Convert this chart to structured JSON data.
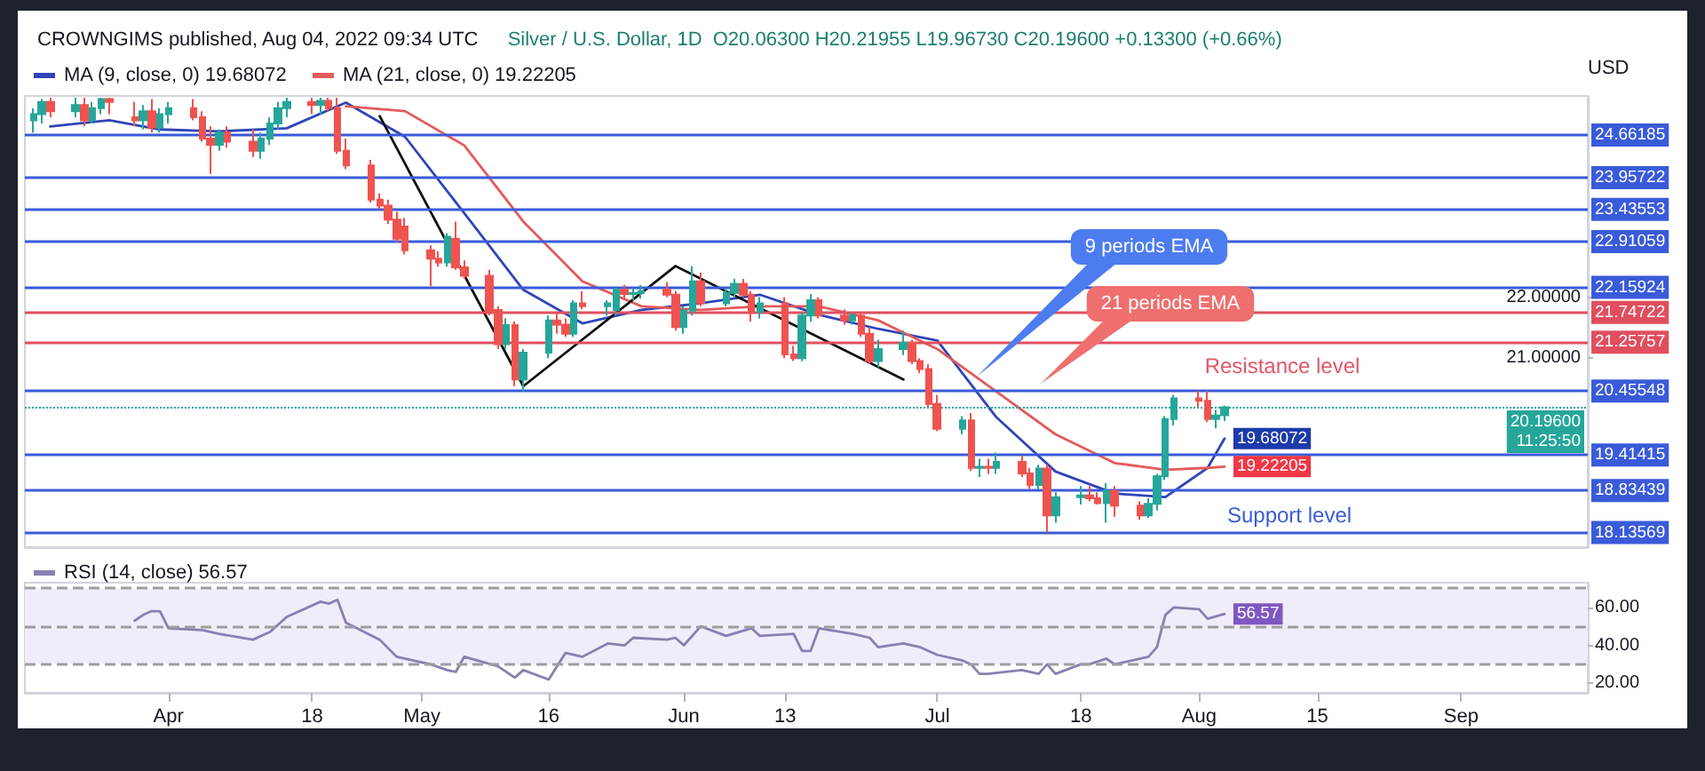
{
  "chart_data": [
    {
      "type": "candlestick",
      "title": "CROWNGIMS published, Aug 04, 2022 09:34 UTC",
      "subtitle": "Silver / U.S. Dollar, 1D  O20.06300 H20.21955 L19.96730 C20.19600 +0.13300 (+0.66%)",
      "ylabel": "USD",
      "x": [
        "2022-03-16",
        "2022-03-17",
        "2022-03-18",
        "2022-03-21",
        "2022-03-22",
        "2022-03-23",
        "2022-03-24",
        "2022-03-25",
        "2022-03-28",
        "2022-03-29",
        "2022-03-30",
        "2022-03-31",
        "2022-04-01",
        "2022-04-04",
        "2022-04-05",
        "2022-04-06",
        "2022-04-07",
        "2022-04-08",
        "2022-04-11",
        "2022-04-12",
        "2022-04-13",
        "2022-04-14",
        "2022-04-15",
        "2022-04-18",
        "2022-04-19",
        "2022-04-20",
        "2022-04-21",
        "2022-04-22",
        "2022-04-25",
        "2022-04-26",
        "2022-04-27",
        "2022-04-28",
        "2022-04-29",
        "2022-05-02",
        "2022-05-03",
        "2022-05-04",
        "2022-05-05",
        "2022-05-06",
        "2022-05-09",
        "2022-05-10",
        "2022-05-11",
        "2022-05-12",
        "2022-05-13",
        "2022-05-16",
        "2022-05-17",
        "2022-05-18",
        "2022-05-19",
        "2022-05-20",
        "2022-05-23",
        "2022-05-24",
        "2022-05-25",
        "2022-05-26",
        "2022-05-27",
        "2022-05-30",
        "2022-05-31",
        "2022-06-01",
        "2022-06-02",
        "2022-06-03",
        "2022-06-06",
        "2022-06-07",
        "2022-06-08",
        "2022-06-09",
        "2022-06-10",
        "2022-06-13",
        "2022-06-14",
        "2022-06-15",
        "2022-06-16",
        "2022-06-17",
        "2022-06-20",
        "2022-06-21",
        "2022-06-22",
        "2022-06-23",
        "2022-06-24",
        "2022-06-27",
        "2022-06-28",
        "2022-06-29",
        "2022-06-30",
        "2022-07-01",
        "2022-07-04",
        "2022-07-05",
        "2022-07-06",
        "2022-07-07",
        "2022-07-08",
        "2022-07-11",
        "2022-07-12",
        "2022-07-13",
        "2022-07-14",
        "2022-07-15",
        "2022-07-18",
        "2022-07-19",
        "2022-07-20",
        "2022-07-21",
        "2022-07-22",
        "2022-07-25",
        "2022-07-26",
        "2022-07-27",
        "2022-07-28",
        "2022-07-29",
        "2022-08-01",
        "2022-08-02",
        "2022-08-03",
        "2022-08-04"
      ],
      "ohlc": [
        [
          24.9,
          25.1,
          24.7,
          25.0
        ],
        [
          25.0,
          25.25,
          24.85,
          25.2
        ],
        [
          25.2,
          25.27,
          24.95,
          25.05
        ],
        [
          25.05,
          25.27,
          24.95,
          25.15
        ],
        [
          25.15,
          25.27,
          24.8,
          24.9
        ],
        [
          24.9,
          25.2,
          24.85,
          25.1
        ],
        [
          25.1,
          25.27,
          25.0,
          25.25
        ],
        [
          25.25,
          25.27,
          25.0,
          25.2
        ],
        [
          24.95,
          25.2,
          24.8,
          24.9
        ],
        [
          24.9,
          25.15,
          24.75,
          25.05
        ],
        [
          25.05,
          25.25,
          24.7,
          24.78
        ],
        [
          24.78,
          25.1,
          24.7,
          25.0
        ],
        [
          25.0,
          25.2,
          24.85,
          25.1
        ],
        [
          25.1,
          25.25,
          24.9,
          24.95
        ],
        [
          24.95,
          25.05,
          24.55,
          24.6
        ],
        [
          24.6,
          24.8,
          24.02,
          24.5
        ],
        [
          24.5,
          24.75,
          24.4,
          24.7
        ],
        [
          24.7,
          24.8,
          24.45,
          24.55
        ],
        [
          24.55,
          24.75,
          24.3,
          24.4
        ],
        [
          24.4,
          24.7,
          24.27,
          24.6
        ],
        [
          24.6,
          24.95,
          24.5,
          24.85
        ],
        [
          24.85,
          25.2,
          24.75,
          25.1
        ],
        [
          25.1,
          25.27,
          24.95,
          25.2
        ],
        [
          25.2,
          25.27,
          25.0,
          25.15
        ],
        [
          25.15,
          25.27,
          25.0,
          25.22
        ],
        [
          25.22,
          25.27,
          25.05,
          25.1
        ],
        [
          25.1,
          25.27,
          24.35,
          24.4
        ],
        [
          24.4,
          24.6,
          24.1,
          24.16
        ],
        [
          24.16,
          24.25,
          23.55,
          23.6
        ],
        [
          23.6,
          23.7,
          23.45,
          23.5
        ],
        [
          23.5,
          23.6,
          23.2,
          23.27
        ],
        [
          23.27,
          23.4,
          22.9,
          22.96
        ],
        [
          23.16,
          23.3,
          22.7,
          22.77
        ],
        [
          22.77,
          22.85,
          22.18,
          22.63
        ],
        [
          22.63,
          22.75,
          22.5,
          22.57
        ],
        [
          22.57,
          23.05,
          22.5,
          22.99
        ],
        [
          22.96,
          23.24,
          22.45,
          22.49
        ],
        [
          22.49,
          22.6,
          22.3,
          22.35
        ],
        [
          22.35,
          22.45,
          21.7,
          21.76
        ],
        [
          21.79,
          21.85,
          21.15,
          21.23
        ],
        [
          21.23,
          21.65,
          21.15,
          21.54
        ],
        [
          21.54,
          21.6,
          20.54,
          20.65
        ],
        [
          20.65,
          21.15,
          20.45,
          21.09
        ],
        [
          21.09,
          21.7,
          21.0,
          21.62
        ],
        [
          21.62,
          21.75,
          21.4,
          21.55
        ],
        [
          21.55,
          21.65,
          21.35,
          21.4
        ],
        [
          21.4,
          21.95,
          21.35,
          21.9
        ],
        [
          21.9,
          22.1,
          21.8,
          21.85
        ],
        [
          21.85,
          21.95,
          21.7,
          21.9
        ],
        [
          21.79,
          22.15,
          21.7,
          22.12
        ],
        [
          22.12,
          22.2,
          21.95,
          22.05
        ],
        [
          22.05,
          22.15,
          21.95,
          22.07
        ],
        [
          22.07,
          22.2,
          21.98,
          22.1
        ],
        [
          22.12,
          22.25,
          22.0,
          22.04
        ],
        [
          22.04,
          22.1,
          21.45,
          21.51
        ],
        [
          21.51,
          21.85,
          21.4,
          21.78
        ],
        [
          21.78,
          22.51,
          21.7,
          22.26
        ],
        [
          22.26,
          22.4,
          21.85,
          21.9
        ],
        [
          21.9,
          22.15,
          21.85,
          22.07
        ],
        [
          22.07,
          22.3,
          22.0,
          22.22
        ],
        [
          22.22,
          22.3,
          22.0,
          22.04
        ],
        [
          22.04,
          22.1,
          21.6,
          21.76
        ],
        [
          21.76,
          22.0,
          21.65,
          21.9
        ],
        [
          21.9,
          22.0,
          21.0,
          21.06
        ],
        [
          21.06,
          21.2,
          20.95,
          21.0
        ],
        [
          21.0,
          21.75,
          20.95,
          21.7
        ],
        [
          21.7,
          22.05,
          21.6,
          21.95
        ],
        [
          21.95,
          22.0,
          21.65,
          21.7
        ],
        [
          21.7,
          21.8,
          21.55,
          21.62
        ],
        [
          21.62,
          21.75,
          21.55,
          21.7
        ],
        [
          21.7,
          21.75,
          21.35,
          21.4
        ],
        [
          21.4,
          21.5,
          20.9,
          20.95
        ],
        [
          20.95,
          21.3,
          20.85,
          21.15
        ],
        [
          21.15,
          21.45,
          21.05,
          21.25
        ],
        [
          21.25,
          21.3,
          20.9,
          20.95
        ],
        [
          20.95,
          21.0,
          20.75,
          20.82
        ],
        [
          20.82,
          20.9,
          20.2,
          20.25
        ],
        [
          20.25,
          20.4,
          19.8,
          19.84
        ],
        [
          19.84,
          20.05,
          19.75,
          19.98
        ],
        [
          19.98,
          20.1,
          19.15,
          19.2
        ],
        [
          19.2,
          19.35,
          19.05,
          19.22
        ],
        [
          19.22,
          19.35,
          19.1,
          19.2
        ],
        [
          19.2,
          19.45,
          19.1,
          19.3
        ],
        [
          19.3,
          19.4,
          19.05,
          19.11
        ],
        [
          19.11,
          19.2,
          18.85,
          18.92
        ],
        [
          18.92,
          19.25,
          18.85,
          19.19
        ],
        [
          19.19,
          19.25,
          18.14,
          18.42
        ],
        [
          18.42,
          18.8,
          18.3,
          18.72
        ],
        [
          18.72,
          18.9,
          18.6,
          18.75
        ],
        [
          18.75,
          18.9,
          18.65,
          18.7
        ],
        [
          18.7,
          18.8,
          18.6,
          18.62
        ],
        [
          18.62,
          18.95,
          18.3,
          18.82
        ],
        [
          18.82,
          18.9,
          18.4,
          18.58
        ],
        [
          18.58,
          18.65,
          18.35,
          18.42
        ],
        [
          18.42,
          18.7,
          18.38,
          18.61
        ],
        [
          18.61,
          19.1,
          18.5,
          19.06
        ],
        [
          19.06,
          20.05,
          19.0,
          20.0
        ],
        [
          20.0,
          20.4,
          19.9,
          20.34
        ],
        [
          20.34,
          20.46,
          20.2,
          20.3
        ],
        [
          20.3,
          20.46,
          19.95,
          20.0
        ],
        [
          20.0,
          20.15,
          19.85,
          20.06
        ],
        [
          20.063,
          20.21955,
          19.9673,
          20.196
        ]
      ],
      "series": [
        {
          "name": "MA (9, close, 0) 19.68072",
          "type": "line",
          "color": "#2f45b8",
          "x": [
            "2022-03-18",
            "2022-03-25",
            "2022-03-31",
            "2022-04-07",
            "2022-04-15",
            "2022-04-22",
            "2022-04-29",
            "2022-05-06",
            "2022-05-13",
            "2022-05-20",
            "2022-05-27",
            "2022-06-03",
            "2022-06-10",
            "2022-06-17",
            "2022-06-24",
            "2022-07-01",
            "2022-07-08",
            "2022-07-15",
            "2022-07-22",
            "2022-07-28",
            "2022-08-02",
            "2022-08-04"
          ],
          "values": [
            24.8,
            24.9,
            24.75,
            24.72,
            24.77,
            25.19,
            24.63,
            23.38,
            22.12,
            21.57,
            21.79,
            21.9,
            22.04,
            21.71,
            21.48,
            21.29,
            20.03,
            19.14,
            18.78,
            18.72,
            19.2,
            19.68
          ]
        },
        {
          "name": "MA (21, close, 0) 19.22205",
          "type": "line",
          "color": "#e35a5a",
          "x": [
            "2022-04-22",
            "2022-04-29",
            "2022-05-06",
            "2022-05-13",
            "2022-05-20",
            "2022-05-27",
            "2022-06-03",
            "2022-06-10",
            "2022-06-17",
            "2022-06-24",
            "2022-07-01",
            "2022-07-08",
            "2022-07-15",
            "2022-07-22",
            "2022-07-28",
            "2022-08-02",
            "2022-08-04"
          ],
          "values": [
            25.13,
            25.05,
            24.49,
            23.24,
            22.26,
            21.85,
            21.79,
            21.85,
            21.85,
            21.62,
            21.15,
            20.45,
            19.75,
            19.28,
            19.17,
            19.2,
            19.22
          ]
        },
        {
          "type": "line",
          "color": "#111111",
          "x": [
            "2022-04-26",
            "2022-05-13",
            "2022-05-31",
            "2022-06-27"
          ],
          "values": [
            24.97,
            20.54,
            22.51,
            20.65
          ]
        }
      ],
      "xlim": [
        "2022-03-15",
        "2022-09-16"
      ],
      "ylim": [
        17.9,
        25.3
      ],
      "yticks": [
        {
          "value": 21,
          "label": "21.00000"
        },
        {
          "value": 22,
          "label": "22.00000"
        }
      ],
      "ref_lines": [
        {
          "axis": "y",
          "value": 24.66185,
          "label": "24.66185",
          "color": "#3a5bd9"
        },
        {
          "axis": "y",
          "value": 23.95722,
          "label": "23.95722",
          "color": "#3a5bd9"
        },
        {
          "axis": "y",
          "value": 23.43553,
          "label": "23.43553",
          "color": "#3a5bd9"
        },
        {
          "axis": "y",
          "value": 22.91059,
          "label": "22.91059",
          "color": "#3a5bd9"
        },
        {
          "axis": "y",
          "value": 22.15924,
          "label": "22.15924",
          "color": "#3a5bd9"
        },
        {
          "axis": "y",
          "value": 21.74722,
          "label": "21.74722",
          "color": "#e04f5f"
        },
        {
          "axis": "y",
          "value": 21.25757,
          "label": "21.25757",
          "color": "#e04f5f"
        },
        {
          "axis": "y",
          "value": 20.45548,
          "label": "20.45548",
          "color": "#3a5bd9"
        },
        {
          "axis": "y",
          "value": 20.196,
          "label": "20.19600\n11:25:50",
          "color": "#26a69a",
          "line_style": "dotted"
        },
        {
          "axis": "y",
          "value": 19.41415,
          "label": "19.41415",
          "color": "#3a5bd9"
        },
        {
          "axis": "y",
          "value": 18.83439,
          "label": "18.83439",
          "color": "#3a5bd9"
        },
        {
          "axis": "y",
          "value": 18.13569,
          "label": "18.13569",
          "color": "#3a5bd9"
        }
      ],
      "annotations": [
        "9 periods EMA",
        "21 periods EMA",
        "Resistance level",
        "Support level",
        {
          "text": "19.68072",
          "x": "2022-08-04",
          "y": 19.68072
        },
        {
          "text": "19.22205",
          "x": "2022-08-04",
          "y": 19.22205
        }
      ],
      "tick_labels": "y",
      "grid": false,
      "legend": "top left",
      "marker": "none"
    },
    {
      "type": "line",
      "series": [
        {
          "name": "RSI (14, close) 56.57",
          "color": "#8a7fb0",
          "x": [
            "2022-03-28",
            "2022-03-29",
            "2022-03-30",
            "2022-03-31",
            "2022-04-01",
            "2022-04-05",
            "2022-04-07",
            "2022-04-11",
            "2022-04-13",
            "2022-04-15",
            "2022-04-19",
            "2022-04-20",
            "2022-04-21",
            "2022-04-22",
            "2022-04-26",
            "2022-04-28",
            "2022-05-02",
            "2022-05-04",
            "2022-05-05",
            "2022-05-06",
            "2022-05-10",
            "2022-05-12",
            "2022-05-13",
            "2022-05-16",
            "2022-05-18",
            "2022-05-20",
            "2022-05-23",
            "2022-05-25",
            "2022-05-26",
            "2022-05-30",
            "2022-05-31",
            "2022-06-01",
            "2022-06-03",
            "2022-06-06",
            "2022-06-09",
            "2022-06-10",
            "2022-06-14",
            "2022-06-15",
            "2022-06-16",
            "2022-06-17",
            "2022-06-21",
            "2022-06-23",
            "2022-06-24",
            "2022-06-27",
            "2022-06-29",
            "2022-07-01",
            "2022-07-04",
            "2022-07-05",
            "2022-07-06",
            "2022-07-07",
            "2022-07-11",
            "2022-07-13",
            "2022-07-14",
            "2022-07-15",
            "2022-07-18",
            "2022-07-19",
            "2022-07-21",
            "2022-07-22",
            "2022-07-26",
            "2022-07-27",
            "2022-07-28",
            "2022-07-29",
            "2022-08-01",
            "2022-08-02",
            "2022-08-04"
          ],
          "values": [
            53,
            56,
            58,
            58,
            49,
            48,
            46,
            43,
            47,
            55,
            63,
            62,
            64,
            52,
            43,
            34,
            30,
            27,
            26,
            34,
            29,
            23,
            27,
            22,
            36,
            34,
            41,
            40,
            44,
            43,
            44,
            40,
            50,
            45,
            49,
            45,
            46,
            37,
            37,
            49,
            46,
            44,
            39,
            41,
            39,
            35,
            32,
            30,
            25,
            25,
            27,
            25,
            30,
            25,
            30,
            30,
            33,
            30,
            34,
            39,
            56,
            60,
            59,
            54,
            56.57
          ]
        }
      ],
      "xlim": [
        "2022-03-15",
        "2022-09-16"
      ],
      "xticks": [
        {
          "value": "2022-04-01",
          "label": "Apr"
        },
        {
          "value": "2022-04-18",
          "label": "18"
        },
        {
          "value": "2022-05-01",
          "label": "May"
        },
        {
          "value": "2022-05-16",
          "label": "16"
        },
        {
          "value": "2022-06-01",
          "label": "Jun"
        },
        {
          "value": "2022-06-13",
          "label": "13"
        },
        {
          "value": "2022-07-01",
          "label": "Jul"
        },
        {
          "value": "2022-07-18",
          "label": "18"
        },
        {
          "value": "2022-08-01",
          "label": "Aug"
        },
        {
          "value": "2022-08-15",
          "label": "15"
        },
        {
          "value": "2022-09-01",
          "label": "Sep"
        }
      ],
      "ylim": [
        15,
        73
      ],
      "yticks": [
        {
          "value": 20,
          "label": "20.00"
        },
        {
          "value": 40,
          "label": "40.00"
        },
        {
          "value": 60,
          "label": "60.00"
        }
      ],
      "ref_lines": [
        {
          "axis": "y",
          "value": 70,
          "color": "#9e9e9e",
          "line_style": "dashed"
        },
        {
          "axis": "y",
          "value": 50,
          "color": "#9e9e9e",
          "line_style": "dashed"
        },
        {
          "axis": "y",
          "value": 30,
          "color": "#9e9e9e",
          "line_style": "dashed"
        }
      ],
      "bands": [
        {
          "axis": "y",
          "from": 30,
          "to": 70,
          "color": "#f1ecfa"
        }
      ],
      "annotations": [
        {
          "text": "56.57",
          "x": "2022-08-04",
          "y": 56.57
        }
      ],
      "grid": false,
      "legend": "top left",
      "marker": "none"
    }
  ]
}
